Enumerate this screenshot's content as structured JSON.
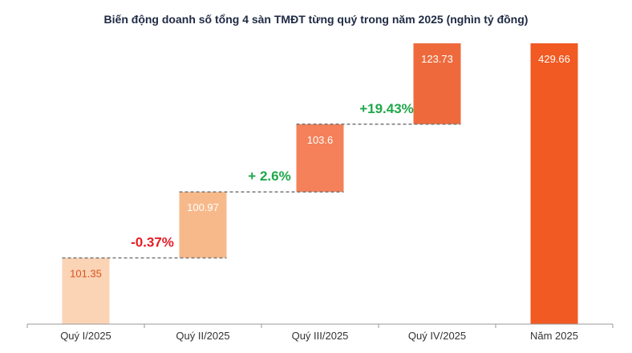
{
  "chart_data": {
    "type": "waterfall",
    "title": "Biến động doanh số tổng 4 sàn TMĐT từng quý trong năm 2025 (nghìn tỷ đồng)",
    "categories": [
      "Quý I/2025",
      "Quý II/2025",
      "Quý III/2025",
      "Quý IV/2025",
      "Năm 2025"
    ],
    "values": [
      101.35,
      100.97,
      103.6,
      123.73,
      429.66
    ],
    "value_labels": [
      "101.35",
      "100.97",
      "103.6",
      "123.73",
      "429.66"
    ],
    "changes": [
      {
        "between": [
          0,
          1
        ],
        "label": "-0.37%",
        "color": "#e41e26"
      },
      {
        "between": [
          1,
          2
        ],
        "label": "+ 2.6%",
        "color": "#1fa84a"
      },
      {
        "between": [
          2,
          3
        ],
        "label": "+19.43%",
        "color": "#1fa84a"
      }
    ],
    "colors": [
      "#fbd3b5",
      "#f8b98a",
      "#f4815a",
      "#ee6a3c",
      "#f15a22"
    ],
    "label_colors": [
      "#d9541e",
      "#ffffff",
      "#ffffff",
      "#ffffff",
      "#ffffff"
    ],
    "xlabel": "",
    "ylabel": "",
    "grid": false
  }
}
